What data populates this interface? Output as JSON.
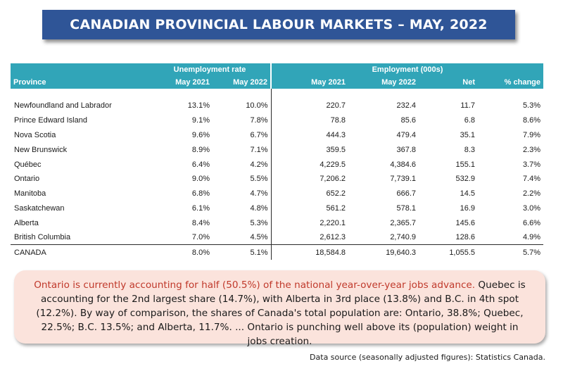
{
  "title": "CANADIAN PROVINCIAL LABOUR MARKETS – MAY, 2022",
  "table": {
    "group_unemployment": "Unemployment rate",
    "group_employment": "Employment (000s)",
    "columns": [
      "Province",
      "May 2021",
      "May 2022",
      "May 2021",
      "May 2022",
      "Net",
      "% change"
    ],
    "rows": [
      [
        "Newfoundland and Labrador",
        "13.1%",
        "10.0%",
        "220.7",
        "232.4",
        "11.7",
        "5.3%"
      ],
      [
        "Prince Edward Island",
        "9.1%",
        "7.8%",
        "78.8",
        "85.6",
        "6.8",
        "8.6%"
      ],
      [
        "Nova Scotia",
        "9.6%",
        "6.7%",
        "444.3",
        "479.4",
        "35.1",
        "7.9%"
      ],
      [
        "New Brunswick",
        "8.9%",
        "7.1%",
        "359.5",
        "367.8",
        "8.3",
        "2.3%"
      ],
      [
        "Québec",
        "6.4%",
        "4.2%",
        "4,229.5",
        "4,384.6",
        "155.1",
        "3.7%"
      ],
      [
        "Ontario",
        "9.0%",
        "5.5%",
        "7,206.2",
        "7,739.1",
        "532.9",
        "7.4%"
      ],
      [
        "Manitoba",
        "6.8%",
        "4.7%",
        "652.2",
        "666.7",
        "14.5",
        "2.2%"
      ],
      [
        "Saskatchewan",
        "6.1%",
        "4.8%",
        "561.2",
        "578.1",
        "16.9",
        "3.0%"
      ],
      [
        "Alberta",
        "8.4%",
        "5.3%",
        "2,220.1",
        "2,365.7",
        "145.6",
        "6.6%"
      ],
      [
        "British Columbia",
        "7.0%",
        "4.5%",
        "2,612.3",
        "2,740.9",
        "128.6",
        "4.9%"
      ]
    ],
    "total": [
      "CANADA",
      "8.0%",
      "5.1%",
      "18,584.8",
      "19,640.3",
      "1,055.5",
      "5.7%"
    ]
  },
  "note": {
    "highlight": "Ontario is currently accounting for half (50.5%) of the national year-over-year jobs advance.",
    "body": " Quebec is accounting for the 2nd largest share (14.7%), with Alberta in 3rd place (13.8%) and B.C. in 4th spot (12.2%). By way of comparison, the shares of Canada's total population are: Ontario, 38.8%; Quebec, 22.5%; B.C. 13.5%; and  Alberta, 11.7%. ... Ontario is punching well above its (population) weight in jobs creation.",
    "highlight_color": "#c0392b",
    "background_color": "#fbe3dc"
  },
  "source": "Data source (seasonally adjusted figures): Statistics Canada.",
  "colors": {
    "banner": "#2f5597",
    "table_header": "#31a5b8"
  }
}
